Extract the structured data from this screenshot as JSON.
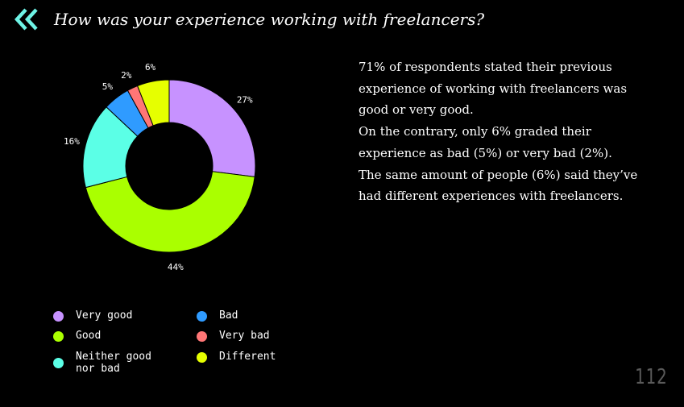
{
  "header": {
    "title": "How was your experience working with freelancers?",
    "back_icon": "double-chevron-left-icon",
    "back_icon_color": "#6ef3e6"
  },
  "chart_data": {
    "type": "pie",
    "donut": true,
    "title": "",
    "start_angle_deg": 0,
    "direction": "clockwise",
    "legend_position": "bottom",
    "slices": [
      {
        "name": "Very good",
        "value": 27,
        "label": "27%",
        "color": "#c792ff"
      },
      {
        "name": "Good",
        "value": 44,
        "label": "44%",
        "color": "#aaff00"
      },
      {
        "name": "Neither good nor bad",
        "value": 16,
        "label": "16%",
        "color": "#5bffe6"
      },
      {
        "name": "Bad",
        "value": 5,
        "label": "5%",
        "color": "#2f9bff"
      },
      {
        "name": "Very bad",
        "value": 2,
        "label": "2%",
        "color": "#ff7676"
      },
      {
        "name": "Different",
        "value": 6,
        "label": "6%",
        "color": "#e6ff00"
      }
    ]
  },
  "legend": {
    "items": [
      {
        "label": "Very good",
        "color": "#c792ff"
      },
      {
        "label": "Good",
        "color": "#aaff00"
      },
      {
        "label": "Neither good\nnor bad",
        "color": "#5bffe6"
      },
      {
        "label": "Bad",
        "color": "#2f9bff"
      },
      {
        "label": "Very bad",
        "color": "#ff7676"
      },
      {
        "label": "Different",
        "color": "#e6ff00"
      }
    ]
  },
  "description": {
    "paragraphs": [
      "71% of respondents stated their previous experience of working with freelancers was good or very good.",
      "On the contrary, only 6% graded their experience as bad (5%) or very bad (2%).",
      "The same amount of people (6%) said they’ve had different experiences with freelancers."
    ]
  },
  "page_number": "112"
}
